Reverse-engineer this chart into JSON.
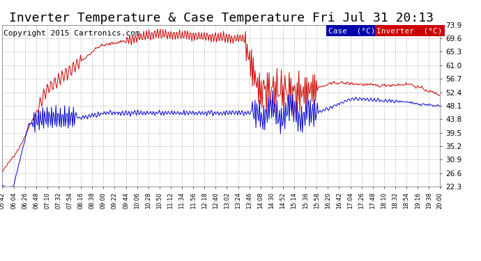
{
  "title": "Inverter Temperature & Case Temperature Fri Jul 31 20:13",
  "copyright": "Copyright 2015 Cartronics.com",
  "ylim": [
    22.3,
    73.9
  ],
  "yticks": [
    22.3,
    26.6,
    30.9,
    35.2,
    39.5,
    43.8,
    48.1,
    52.4,
    56.7,
    61.0,
    65.3,
    69.6,
    73.9
  ],
  "inverter_color": "#cc0000",
  "case_color": "#0000cc",
  "legend_case_bg": "#0000aa",
  "legend_inv_bg": "#cc0000",
  "background_color": "#ffffff",
  "grid_color": "#aaaaaa",
  "title_fontsize": 13,
  "copyright_fontsize": 8,
  "num_points": 500,
  "xtick_labels": [
    "05:42",
    "06:04",
    "06:26",
    "06:48",
    "07:10",
    "07:32",
    "07:54",
    "08:16",
    "08:38",
    "09:00",
    "09:22",
    "09:44",
    "10:06",
    "10:28",
    "10:50",
    "11:12",
    "11:34",
    "11:56",
    "12:18",
    "12:40",
    "13:02",
    "13:24",
    "13:46",
    "14:08",
    "14:30",
    "14:52",
    "15:14",
    "15:36",
    "15:58",
    "16:20",
    "16:42",
    "17:04",
    "17:26",
    "17:48",
    "18:10",
    "18:32",
    "18:54",
    "19:16",
    "19:38",
    "20:00"
  ]
}
